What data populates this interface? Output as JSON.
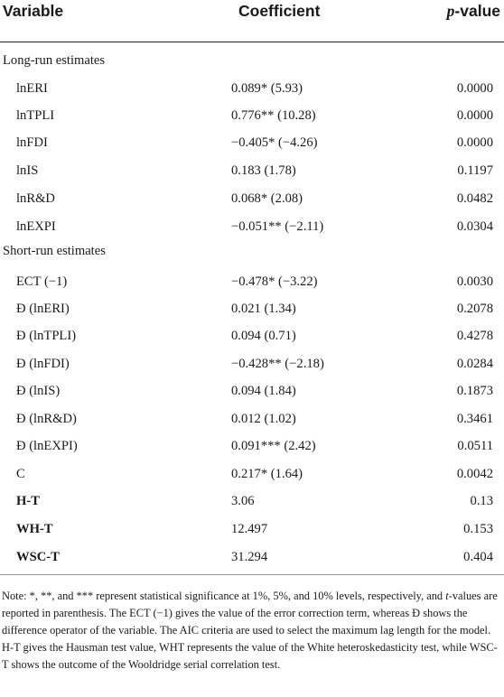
{
  "headers": {
    "variable": "Variable",
    "coefficient": "Coefficient",
    "pvalue_letter": "p",
    "pvalue_rest": "-value"
  },
  "rows": [
    {
      "variable": "Long-run estimates",
      "coefficient": "",
      "pvalue": "",
      "section": true
    },
    {
      "variable": "lnERI",
      "coefficient": "0.089* (5.93)",
      "pvalue": "0.0000"
    },
    {
      "variable": "lnTPLI",
      "coefficient": "0.776** (10.28)",
      "pvalue": "0.0000"
    },
    {
      "variable": "lnFDI",
      "coefficient": "−0.405* (−4.26)",
      "pvalue": "0.0000"
    },
    {
      "variable": "lnIS",
      "coefficient": "0.183 (1.78)",
      "pvalue": "0.1197"
    },
    {
      "variable": "lnR&D",
      "coefficient": "0.068* (2.08)",
      "pvalue": "0.0482"
    },
    {
      "variable": "lnEXPI",
      "coefficient": "−0.051** (−2.11)",
      "pvalue": "0.0304"
    },
    {
      "variable": "Short-run estimates",
      "coefficient": "",
      "pvalue": "",
      "section": true
    },
    {
      "variable": "ECT (−1)",
      "coefficient": "−0.478* (−3.22)",
      "pvalue": "0.0030"
    },
    {
      "variable": "Ð (lnERI)",
      "coefficient": "0.021 (1.34)",
      "pvalue": "0.2078"
    },
    {
      "variable": "Ð (lnTPLI)",
      "coefficient": "0.094 (0.71)",
      "pvalue": "0.4278"
    },
    {
      "variable": "Ð (lnFDI)",
      "coefficient": "−0.428** (−2.18)",
      "pvalue": "0.0284"
    },
    {
      "variable": "Ð (lnIS)",
      "coefficient": "0.094 (1.84)",
      "pvalue": "0.1873"
    },
    {
      "variable": "Ð (lnR&D)",
      "coefficient": "0.012 (1.02)",
      "pvalue": "0.3461"
    },
    {
      "variable": "Ð (lnEXPI)",
      "coefficient": "0.091*** (2.42)",
      "pvalue": "0.0511"
    },
    {
      "variable": "C",
      "coefficient": "0.217* (1.64)",
      "pvalue": "0.0042"
    },
    {
      "variable": "H-T",
      "coefficient": "3.06",
      "pvalue": "0.13",
      "bold": true
    },
    {
      "variable": "WH-T",
      "coefficient": "12.497",
      "pvalue": "0.153",
      "bold": true
    },
    {
      "variable": "WSC-T",
      "coefficient": "31.294",
      "pvalue": "0.404",
      "bold": true
    }
  ],
  "note": {
    "part1": "Note: *, **, and *** represent statistical significance at 1%, 5%, and 10% levels, respectively, and ",
    "italic_t": "t",
    "part2": "-values are reported in parenthesis. The ECT (−1) gives the value of the error correction term, whereas Ð shows the difference operator of the variable. The AIC criteria are used to select the maximum lag length for the model. H-T gives the Hausman test value, WHT represents the value of the White heteroskedasticity test, while WSC-T shows the outcome of the Wooldridge serial correlation test."
  }
}
